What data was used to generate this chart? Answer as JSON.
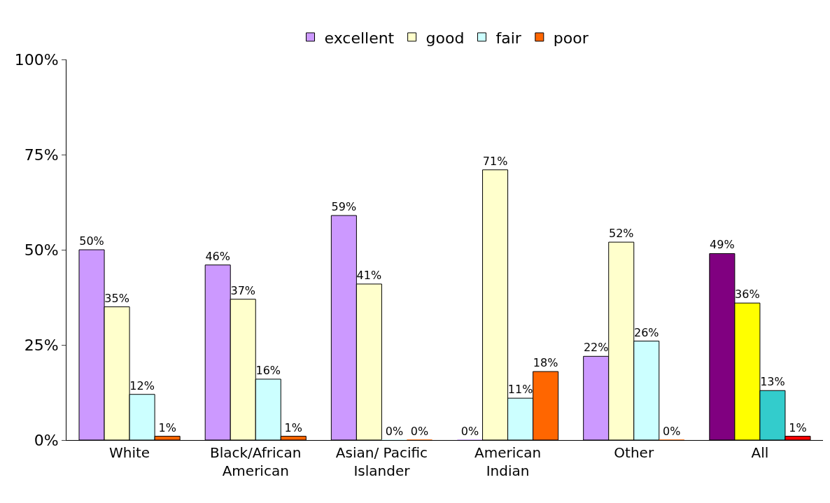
{
  "chart_data": {
    "type": "bar",
    "categories": [
      "White",
      "Black/African American",
      "Asian/ Pacific Islander",
      "American Indian",
      "Other",
      "All"
    ],
    "series": [
      {
        "name": "excellent",
        "color": "#cc99ff",
        "colors": [
          "#cc99ff",
          "#cc99ff",
          "#cc99ff",
          "#cc99ff",
          "#cc99ff",
          "#800080"
        ],
        "values": [
          50,
          46,
          59,
          0,
          22,
          49
        ],
        "value_labels": [
          "50%",
          "46%",
          "59%",
          "0%",
          "22%",
          "49%"
        ]
      },
      {
        "name": "good",
        "color": "#ffffcc",
        "colors": [
          "#ffffcc",
          "#ffffcc",
          "#ffffcc",
          "#ffffcc",
          "#ffffcc",
          "#ffff00"
        ],
        "values": [
          35,
          37,
          41,
          71,
          52,
          36
        ],
        "value_labels": [
          "35%",
          "37%",
          "41%",
          "71%",
          "52%",
          "36%"
        ]
      },
      {
        "name": "fair",
        "color": "#ccffff",
        "colors": [
          "#ccffff",
          "#ccffff",
          "#ccffff",
          "#ccffff",
          "#ccffff",
          "#33cccc"
        ],
        "values": [
          12,
          16,
          0,
          11,
          26,
          13
        ],
        "value_labels": [
          "12%",
          "16%",
          "0%",
          "11%",
          "26%",
          "13%"
        ]
      },
      {
        "name": "poor",
        "color": "#ff6600",
        "colors": [
          "#ff6600",
          "#ff6600",
          "#ff6600",
          "#ff6600",
          "#ff6600",
          "#ff0000"
        ],
        "values": [
          1,
          1,
          0,
          18,
          0,
          1
        ],
        "value_labels": [
          "1%",
          "1%",
          "0%",
          "18%",
          "0%",
          "1%"
        ]
      }
    ],
    "ylim": [
      0,
      100
    ],
    "yticks": [
      {
        "value": 0,
        "label": "0%"
      },
      {
        "value": 25,
        "label": "25%"
      },
      {
        "value": 50,
        "label": "50%"
      },
      {
        "value": 75,
        "label": "75%"
      },
      {
        "value": 100,
        "label": "100%"
      }
    ],
    "grid": false,
    "legend": "top"
  }
}
